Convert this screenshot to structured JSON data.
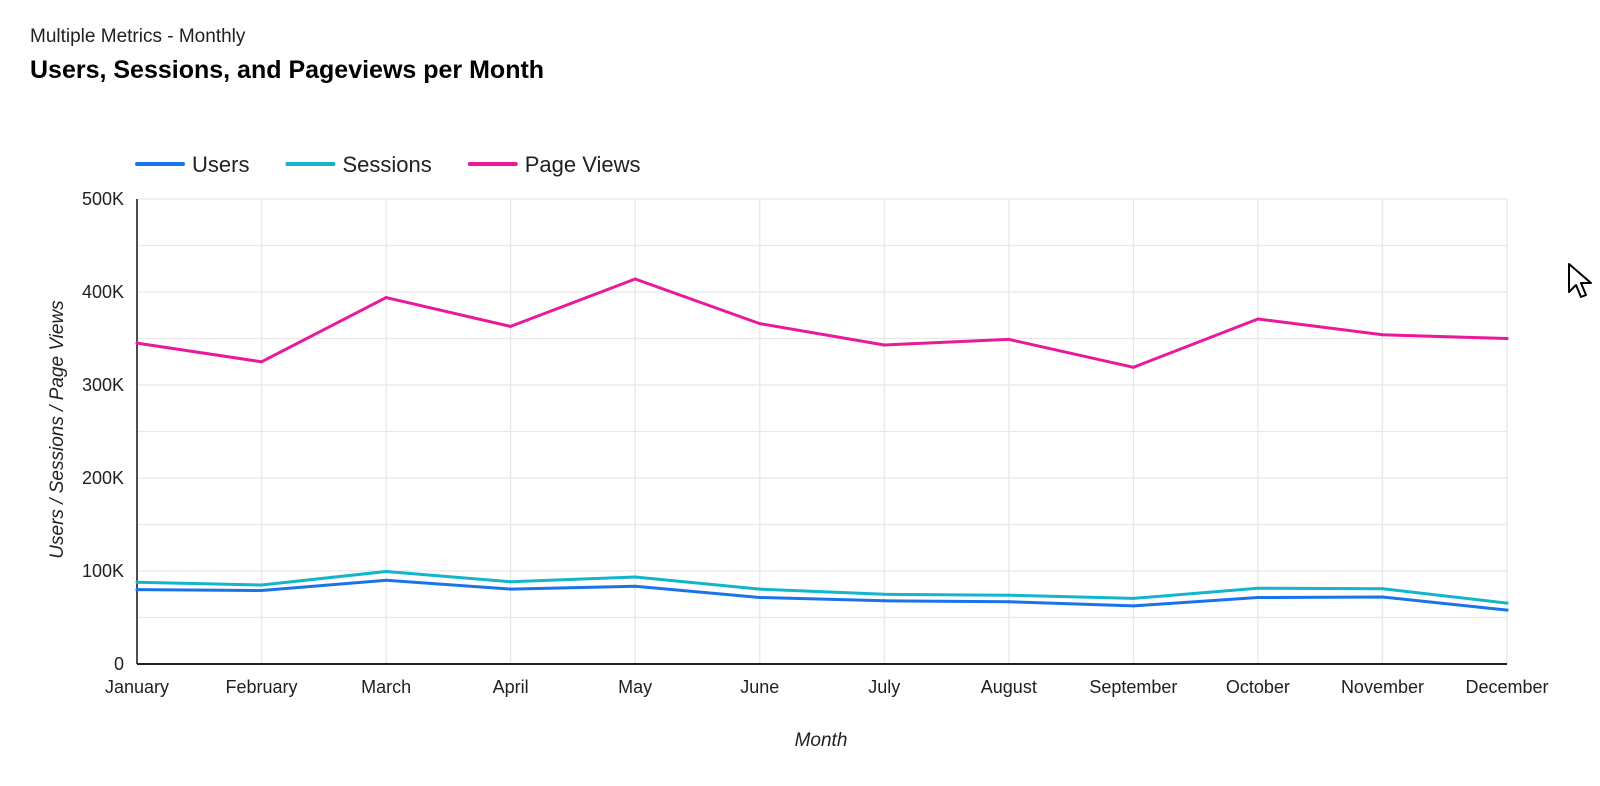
{
  "header": {
    "subtitle": "Multiple Metrics - Monthly",
    "title": "Users, Sessions, and Pageviews per Month"
  },
  "chart_data": {
    "type": "line",
    "title": "Users, Sessions, and Pageviews per Month",
    "subtitle": "Multiple Metrics - Monthly",
    "xlabel": "Month",
    "ylabel": "Users / Sessions / Page Views",
    "categories": [
      "January",
      "February",
      "March",
      "April",
      "May",
      "June",
      "July",
      "August",
      "September",
      "October",
      "November",
      "December"
    ],
    "ylim": [
      0,
      500000
    ],
    "yticks": [
      0,
      100000,
      200000,
      300000,
      400000,
      500000
    ],
    "ytick_labels": [
      "0",
      "100K",
      "200K",
      "300K",
      "400K",
      "500K"
    ],
    "grid": true,
    "legend_position": "top-left",
    "series": [
      {
        "name": "Users",
        "color": "#1a73e8",
        "values": [
          80000,
          79000,
          90000,
          80500,
          83500,
          71500,
          68000,
          67000,
          62500,
          71500,
          72000,
          58000
        ]
      },
      {
        "name": "Sessions",
        "color": "#12b5cb",
        "values": [
          88000,
          85000,
          99500,
          88500,
          93500,
          80500,
          75000,
          74000,
          70500,
          81500,
          81000,
          65500
        ]
      },
      {
        "name": "Page Views",
        "color": "#e8199a",
        "values": [
          345000,
          325000,
          394000,
          363000,
          414000,
          366000,
          343000,
          349000,
          319000,
          371000,
          354000,
          350000
        ]
      }
    ]
  },
  "icons": {
    "cursor": "mouse-pointer-icon"
  }
}
